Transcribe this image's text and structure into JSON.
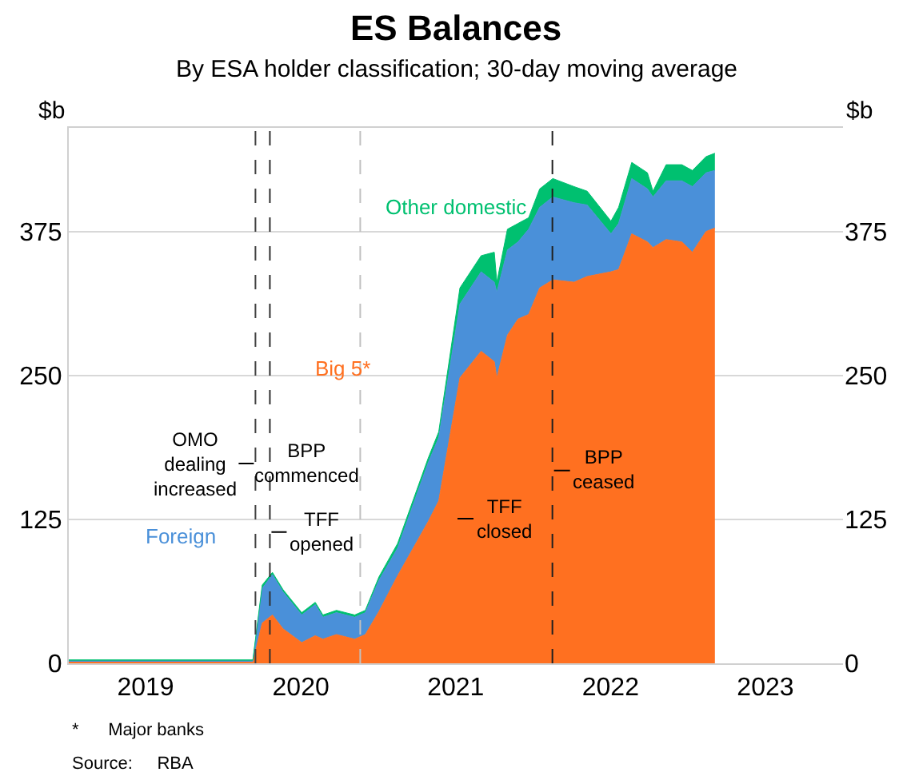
{
  "chart_data": {
    "type": "area",
    "stacked": true,
    "title": "ES Balances",
    "subtitle": "By ESA holder classification; 30-day moving average",
    "ylabel": "$b",
    "y2label": "$b",
    "x": [
      "2019-01-01",
      "2020-03-10",
      "2020-04-01",
      "2020-04-25",
      "2020-05-20",
      "2020-07-03",
      "2020-08-04",
      "2020-08-22",
      "2020-09-23",
      "2020-11-05",
      "2020-11-30",
      "2021-01-01",
      "2021-02-14",
      "2021-04-27",
      "2021-05-22",
      "2021-07-11",
      "2021-08-30",
      "2021-09-30",
      "2021-10-06",
      "2021-10-31",
      "2021-11-25",
      "2021-12-20",
      "2022-01-15",
      "2022-02-15",
      "2022-04-06",
      "2022-05-07",
      "2022-07-02",
      "2022-07-20",
      "2022-08-20",
      "2022-09-26",
      "2022-10-09",
      "2022-11-09",
      "2022-12-16",
      "2023-01-10",
      "2023-02-11",
      "2023-03-04"
    ],
    "series": [
      {
        "name": "Big 5*",
        "color": "#ff7020",
        "values": [
          1,
          1,
          35,
          42,
          30,
          18,
          24,
          21,
          25,
          21,
          25,
          45,
          76,
          123,
          141,
          248,
          271,
          262,
          248,
          285,
          299,
          303,
          326,
          333,
          331,
          336,
          340,
          342,
          373,
          366,
          361,
          368,
          366,
          357,
          375,
          378
        ]
      },
      {
        "name": "Foreign",
        "color": "#4a90d9",
        "values": [
          1,
          1,
          30,
          35,
          32,
          24,
          27,
          19,
          19,
          19,
          19,
          27,
          24,
          51,
          55,
          64,
          69,
          69,
          74,
          74,
          67,
          74,
          70,
          72,
          69,
          62,
          33,
          40,
          48,
          46,
          44,
          51,
          53,
          57,
          51,
          50
        ]
      },
      {
        "name": "Other domestic",
        "color": "#00c070",
        "values": [
          1,
          1,
          3,
          2,
          2,
          2,
          2,
          2,
          2,
          2,
          2,
          3,
          4,
          4,
          5,
          14,
          14,
          26,
          9,
          18,
          16,
          10,
          16,
          16,
          14,
          12,
          11,
          14,
          14,
          14,
          5,
          14,
          14,
          14,
          14,
          15
        ]
      }
    ],
    "xlim": [
      "2019-01-01",
      "2023-12-31"
    ],
    "xticks": [
      {
        "value": "2019-07-01",
        "label": "2019"
      },
      {
        "value": "2020-07-01",
        "label": "2020"
      },
      {
        "value": "2021-07-01",
        "label": "2021"
      },
      {
        "value": "2022-07-01",
        "label": "2022"
      },
      {
        "value": "2023-07-01",
        "label": "2023"
      }
    ],
    "ylim": [
      0,
      465
    ],
    "yticks": [
      0,
      125,
      250,
      375
    ],
    "y2lim": [
      0,
      465
    ],
    "y2ticks": [
      0,
      125,
      250,
      375
    ],
    "grid": "y",
    "legend": false,
    "ref_lines": [
      {
        "axis": "x",
        "value": "2020-03-16",
        "label": "OMO\ndealing\nincreased",
        "color": "#404040",
        "line_style": "dashed"
      },
      {
        "axis": "x",
        "value": "2020-04-19",
        "label": "TFF\nopened",
        "color": "#303030",
        "line_style": "dashed"
      },
      {
        "axis": "x",
        "value": "2020-11-18",
        "label": "BPP\ncommenced",
        "color": "#c0c0c0",
        "line_style": "dashed"
      },
      {
        "axis": "x",
        "value": "2022-02-14",
        "label": "BPP\nceased",
        "color": "#202020",
        "line_style": "dashed"
      }
    ],
    "annotations": [
      "TFF\nclosed",
      "*      Major banks",
      "Source:     RBA"
    ]
  }
}
